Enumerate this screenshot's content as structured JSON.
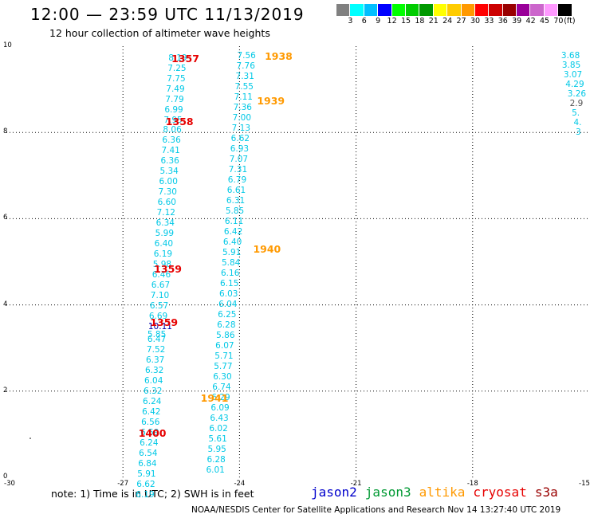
{
  "title": "12:00 — 23:59 UTC 11/13/2019",
  "subtitle": "12 hour collection of altimeter wave heights",
  "colorbar": {
    "colors": [
      "#808080",
      "#00ffff",
      "#00bfff",
      "#0000ff",
      "#00ff00",
      "#00cc00",
      "#009900",
      "#ffff00",
      "#ffcc00",
      "#ff9900",
      "#ff0000",
      "#cc0000",
      "#990000",
      "#990099",
      "#cc66cc",
      "#ff99ff",
      "#000000"
    ],
    "ticks": [
      "3",
      "6",
      "9",
      "12",
      "15",
      "18",
      "21",
      "24",
      "27",
      "30",
      "33",
      "36",
      "39",
      "42",
      "45",
      "70"
    ],
    "unit": "(ft)"
  },
  "axes": {
    "x_ticks": [
      "-30",
      "-27",
      "-24",
      "-21",
      "-18",
      "-15"
    ],
    "y_ticks": [
      "10",
      "8",
      "6",
      "4",
      "2",
      "0"
    ]
  },
  "colors": {
    "swh": "#00c8e6",
    "swh_dark": "#008cb4",
    "time_red": "#e60000",
    "time_orange": "#ff9900",
    "grid": "#000000"
  },
  "tracks": [
    {
      "time": "1357",
      "color": "red",
      "lat": 9.73,
      "lon": -25.75
    },
    {
      "time": "1358",
      "color": "red",
      "lat": 8.27,
      "lon": -25.9
    },
    {
      "time": "1359",
      "color": "red",
      "lat": 4.85,
      "lon": -26.2
    },
    {
      "time": "1359",
      "color": "red",
      "lat": 3.6,
      "lon": -26.3
    },
    {
      "time": "1400",
      "color": "red",
      "lat": 1.03,
      "lon": -26.6
    },
    {
      "time": "1938",
      "color": "orange",
      "lat": 9.77,
      "lon": -23.35
    },
    {
      "time": "1939",
      "color": "orange",
      "lat": 8.75,
      "lon": -23.55
    },
    {
      "time": "1940",
      "color": "orange",
      "lat": 5.3,
      "lon": -23.65
    },
    {
      "time": "1941",
      "color": "orange",
      "lat": 1.85,
      "lon": -25.0
    }
  ],
  "swh_left_track": [
    {
      "v": "8.19",
      "lat": 9.72,
      "lon": -25.83
    },
    {
      "v": "7.25",
      "lat": 9.48,
      "lon": -25.85
    },
    {
      "v": "7.75",
      "lat": 9.24,
      "lon": -25.87
    },
    {
      "v": "7.49",
      "lat": 9.0,
      "lon": -25.89
    },
    {
      "v": "7.79",
      "lat": 8.76,
      "lon": -25.91
    },
    {
      "v": "6.99",
      "lat": 8.52,
      "lon": -25.93
    },
    {
      "v": "7.95",
      "lat": 8.28,
      "lon": -25.95
    },
    {
      "v": "8.06",
      "lat": 8.05,
      "lon": -25.97
    },
    {
      "v": "6.36",
      "lat": 7.81,
      "lon": -25.99
    },
    {
      "v": "7.41",
      "lat": 7.57,
      "lon": -26.01
    },
    {
      "v": "6.36",
      "lat": 7.33,
      "lon": -26.03
    },
    {
      "v": "5.34",
      "lat": 7.09,
      "lon": -26.05
    },
    {
      "v": "6.00",
      "lat": 6.85,
      "lon": -26.07
    },
    {
      "v": "7.30",
      "lat": 6.61,
      "lon": -26.09
    },
    {
      "v": "6.60",
      "lat": 6.37,
      "lon": -26.11
    },
    {
      "v": "7.12",
      "lat": 6.13,
      "lon": -26.13
    },
    {
      "v": "6.34",
      "lat": 5.89,
      "lon": -26.15
    },
    {
      "v": "5.99",
      "lat": 5.65,
      "lon": -26.17
    },
    {
      "v": "6.40",
      "lat": 5.42,
      "lon": -26.19
    },
    {
      "v": "6.19",
      "lat": 5.18,
      "lon": -26.21
    },
    {
      "v": "5.98",
      "lat": 4.94,
      "lon": -26.23
    },
    {
      "v": "6.46",
      "lat": 4.7,
      "lon": -26.25
    },
    {
      "v": "6.67",
      "lat": 4.46,
      "lon": -26.27
    },
    {
      "v": "7.10",
      "lat": 4.22,
      "lon": -26.29
    },
    {
      "v": "6.57",
      "lat": 3.98,
      "lon": -26.31
    },
    {
      "v": "6.69",
      "lat": 3.74,
      "lon": -26.33
    },
    {
      "v": "10.11",
      "lat": 3.5,
      "lon": -26.35,
      "dark": true
    },
    {
      "v": "5.85",
      "lat": 3.3,
      "lon": -26.37
    },
    {
      "v": "6.47",
      "lat": 3.2,
      "lon": -26.37
    },
    {
      "v": "7.52",
      "lat": 2.96,
      "lon": -26.39
    },
    {
      "v": "6.37",
      "lat": 2.72,
      "lon": -26.41
    },
    {
      "v": "6.32",
      "lat": 2.48,
      "lon": -26.43
    },
    {
      "v": "6.04",
      "lat": 2.24,
      "lon": -26.45
    },
    {
      "v": "6.32",
      "lat": 2.0,
      "lon": -26.47
    },
    {
      "v": "6.24",
      "lat": 1.76,
      "lon": -26.49
    },
    {
      "v": "6.42",
      "lat": 1.52,
      "lon": -26.51
    },
    {
      "v": "6.56",
      "lat": 1.28,
      "lon": -26.53
    },
    {
      "v": "6.59",
      "lat": 1.04,
      "lon": -26.55
    },
    {
      "v": "6.24",
      "lat": 0.8,
      "lon": -26.57
    },
    {
      "v": "6.54",
      "lat": 0.56,
      "lon": -26.59
    },
    {
      "v": "6.84",
      "lat": 0.32,
      "lon": -26.61
    },
    {
      "v": "5.91",
      "lat": 0.08,
      "lon": -26.63
    },
    {
      "v": "6.62",
      "lat": -0.16,
      "lon": -26.65
    },
    {
      "v": "6.19",
      "lat": -0.4,
      "lon": -26.67
    }
  ],
  "swh_right_track": [
    {
      "v": "7.56",
      "lat": 9.77,
      "lon": -24.06
    },
    {
      "v": "7.76",
      "lat": 9.53,
      "lon": -24.08
    },
    {
      "v": "7.31",
      "lat": 9.29,
      "lon": -24.1
    },
    {
      "v": "7.55",
      "lat": 9.05,
      "lon": -24.12
    },
    {
      "v": "7.11",
      "lat": 8.81,
      "lon": -24.14
    },
    {
      "v": "7.36",
      "lat": 8.57,
      "lon": -24.16
    },
    {
      "v": "7.00",
      "lat": 8.33,
      "lon": -24.18
    },
    {
      "v": "7.13",
      "lat": 8.09,
      "lon": -24.2
    },
    {
      "v": "6.62",
      "lat": 7.85,
      "lon": -24.22
    },
    {
      "v": "6.93",
      "lat": 7.61,
      "lon": -24.24
    },
    {
      "v": "7.07",
      "lat": 7.37,
      "lon": -24.26
    },
    {
      "v": "7.31",
      "lat": 7.13,
      "lon": -24.28
    },
    {
      "v": "6.79",
      "lat": 6.89,
      "lon": -24.3
    },
    {
      "v": "6.61",
      "lat": 6.65,
      "lon": -24.32
    },
    {
      "v": "6.31",
      "lat": 6.41,
      "lon": -24.34
    },
    {
      "v": "5.85",
      "lat": 6.17,
      "lon": -24.36
    },
    {
      "v": "6.11",
      "lat": 5.93,
      "lon": -24.38
    },
    {
      "v": "6.42",
      "lat": 5.69,
      "lon": -24.4
    },
    {
      "v": "6.40",
      "lat": 5.45,
      "lon": -24.42
    },
    {
      "v": "5.91",
      "lat": 5.21,
      "lon": -24.44
    },
    {
      "v": "5.84",
      "lat": 4.97,
      "lon": -24.46
    },
    {
      "v": "6.16",
      "lat": 4.73,
      "lon": -24.48
    },
    {
      "v": "6.15",
      "lat": 4.49,
      "lon": -24.5
    },
    {
      "v": "6.03",
      "lat": 4.25,
      "lon": -24.52
    },
    {
      "v": "6.04",
      "lat": 4.01,
      "lon": -24.54
    },
    {
      "v": "6.25",
      "lat": 3.77,
      "lon": -24.56
    },
    {
      "v": "6.28",
      "lat": 3.53,
      "lon": -24.58
    },
    {
      "v": "5.86",
      "lat": 3.29,
      "lon": -24.6
    },
    {
      "v": "6.07",
      "lat": 3.05,
      "lon": -24.62
    },
    {
      "v": "5.71",
      "lat": 2.81,
      "lon": -24.64
    },
    {
      "v": "5.77",
      "lat": 2.57,
      "lon": -24.66
    },
    {
      "v": "6.30",
      "lat": 2.33,
      "lon": -24.68
    },
    {
      "v": "6.74",
      "lat": 2.09,
      "lon": -24.7
    },
    {
      "v": "6.29",
      "lat": 1.85,
      "lon": -24.72
    },
    {
      "v": "6.09",
      "lat": 1.61,
      "lon": -24.74
    },
    {
      "v": "6.43",
      "lat": 1.37,
      "lon": -24.76
    },
    {
      "v": "6.02",
      "lat": 1.13,
      "lon": -24.78
    },
    {
      "v": "5.61",
      "lat": 0.89,
      "lon": -24.8
    },
    {
      "v": "5.95",
      "lat": 0.65,
      "lon": -24.82
    },
    {
      "v": "6.28",
      "lat": 0.41,
      "lon": -24.84
    },
    {
      "v": "6.01",
      "lat": 0.17,
      "lon": -24.86
    }
  ],
  "swh_far_right": [
    {
      "v": "3.68",
      "lat": 9.77,
      "lon": -15.72
    },
    {
      "v": "3.85",
      "lat": 9.55,
      "lon": -15.7
    },
    {
      "v": "3.07",
      "lat": 9.33,
      "lon": -15.66
    },
    {
      "v": "4.29",
      "lat": 9.11,
      "lon": -15.61
    },
    {
      "v": "3.26",
      "lat": 8.89,
      "lon": -15.56
    },
    {
      "v": "2.9",
      "lat": 8.67,
      "lon": -15.5,
      "grey": true
    },
    {
      "v": "5.",
      "lat": 8.45,
      "lon": -15.45
    },
    {
      "v": "4.",
      "lat": 8.23,
      "lon": -15.4
    },
    {
      "v": "3",
      "lat": 8.01,
      "lon": -15.35
    }
  ],
  "note": "note: 1) Time is in UTC; 2) SWH is in feet",
  "legend": [
    {
      "name": "jason2",
      "color": "#0000cc"
    },
    {
      "name": "jason3",
      "color": "#009933"
    },
    {
      "name": "altika",
      "color": "#ff9900"
    },
    {
      "name": "cryosat",
      "color": "#e60000"
    },
    {
      "name": "s3a",
      "color": "#990000"
    }
  ],
  "credit": "NOAA/NESDIS Center for Satellite Applications and Research   Nov 14 13:27:40 UTC 2019"
}
